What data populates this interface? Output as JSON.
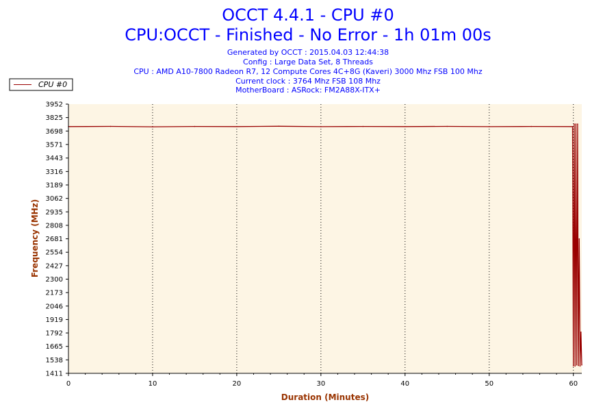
{
  "header": {
    "title": "OCCT 4.4.1 - CPU #0",
    "subtitle": "CPU:OCCT - Finished - No Error - 1h 01m 00s",
    "info": [
      "Generated by OCCT : 2015.04.03 12:44:38",
      "Config : Large Data Set, 8 Threads",
      "CPU : AMD A10-7800 Radeon R7, 12 Compute Cores 4C+8G (Kaveri) 3000 Mhz FSB 100 Mhz",
      "Current clock : 3764 Mhz FSB 108 Mhz",
      "MotherBoard : ASRock: FM2A88X-ITX+"
    ]
  },
  "colors": {
    "line": "#990000",
    "plot_bg": "#fdf5e4",
    "title": "#0000ff",
    "axis_title": "#993300"
  },
  "chart_data": {
    "type": "line",
    "title": "OCCT 4.4.1 - CPU #0",
    "xlabel": "Duration (Minutes)",
    "ylabel": "Frequency (MHz)",
    "xlim": [
      0,
      61
    ],
    "ylim": [
      1411,
      3952
    ],
    "x_ticks": [
      "0",
      "10",
      "20",
      "30",
      "40",
      "50",
      "60"
    ],
    "y_ticks": [
      "3952",
      "3825",
      "3698",
      "3571",
      "3443",
      "3316",
      "3189",
      "3062",
      "2935",
      "2808",
      "2681",
      "2554",
      "2427",
      "2300",
      "2173",
      "2046",
      "1919",
      "1792",
      "1665",
      "1538",
      "1411"
    ],
    "grid": "vertical dotted",
    "legend_position": "top-left",
    "series": [
      {
        "name": "CPU #0",
        "x": [
          0,
          5,
          10,
          15,
          20,
          25,
          30,
          35,
          40,
          45,
          50,
          55,
          59.9,
          60.0,
          60.1,
          60.2,
          60.3,
          60.4,
          60.5,
          60.6,
          60.7,
          60.8,
          60.9,
          61.0
        ],
        "values": [
          3740,
          3742,
          3738,
          3741,
          3740,
          3743,
          3739,
          3741,
          3740,
          3742,
          3739,
          3741,
          3740,
          1480,
          3764,
          1480,
          3764,
          1490,
          3764,
          1485,
          2680,
          1480,
          1800,
          1490
        ]
      }
    ]
  }
}
